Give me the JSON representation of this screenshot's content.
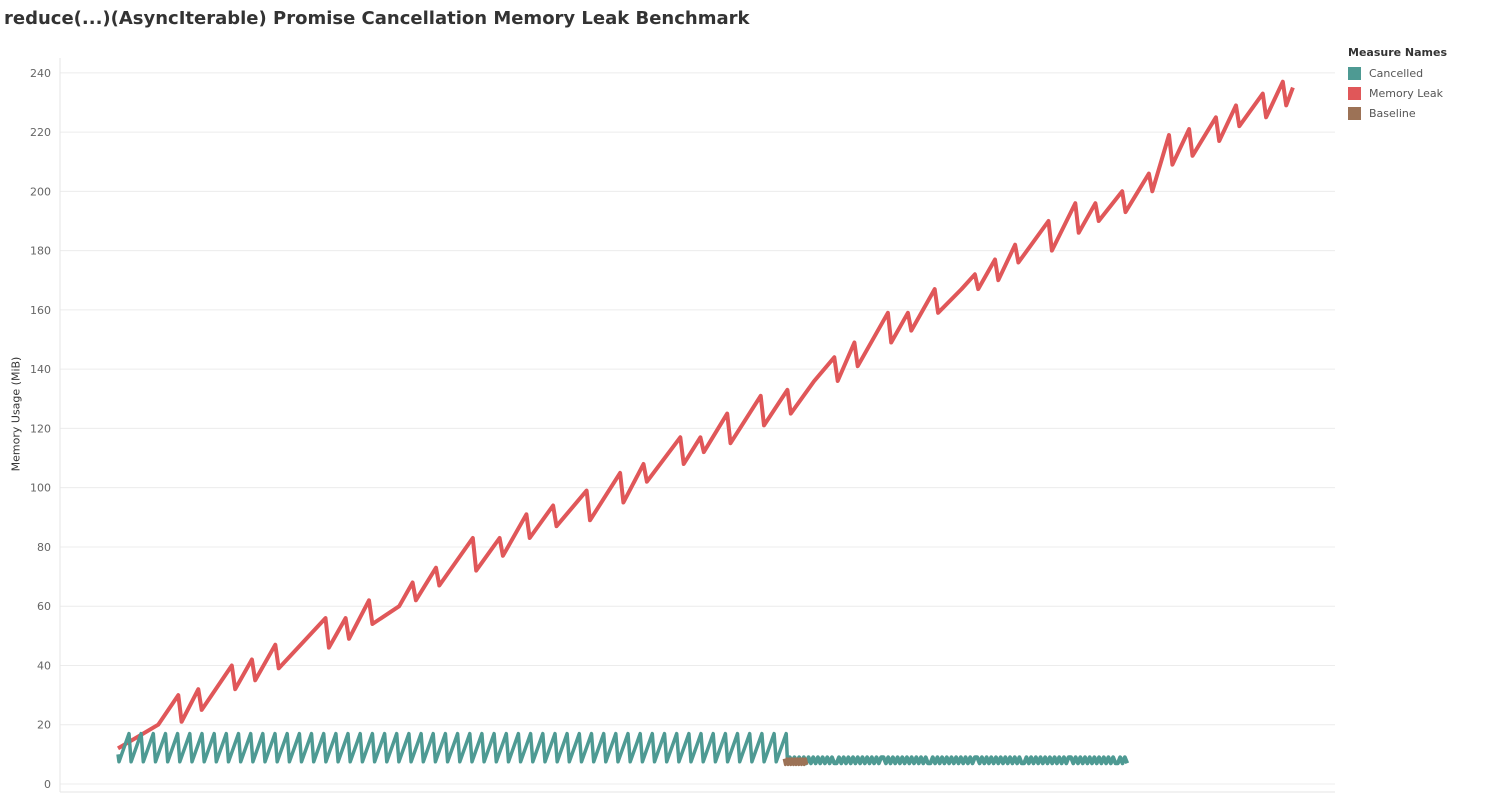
{
  "chart_data": {
    "type": "line",
    "title": "reduce(...)(AsyncIterable) Promise Cancellation Memory Leak Benchmark",
    "xlabel": "",
    "ylabel": "Memory Usage (MiB)",
    "ylim": [
      0,
      245
    ],
    "y_ticks": [
      0,
      20,
      40,
      60,
      80,
      100,
      120,
      140,
      160,
      180,
      200,
      220,
      240
    ],
    "grid": "horizontal",
    "legend_placement": "top-right",
    "legend_title": "Measure Names",
    "series": [
      {
        "name": "Cancelled",
        "color": "#4e9a93",
        "pattern": "sawtooth",
        "x_range": [
          0,
          100
        ],
        "y_low": 7.5,
        "y_high": 17,
        "cycles": 55,
        "flat_after": 100,
        "flat_x_range": [
          100,
          151
        ],
        "flat_y": [
          7.0,
          9.0
        ]
      },
      {
        "name": "Memory Leak",
        "color": "#e05759",
        "pattern": "rising-sawtooth",
        "points": [
          [
            0,
            12
          ],
          [
            3,
            16
          ],
          [
            6,
            20
          ],
          [
            9,
            30
          ],
          [
            9.5,
            21
          ],
          [
            12,
            32
          ],
          [
            12.5,
            25
          ],
          [
            17,
            40
          ],
          [
            17.5,
            32
          ],
          [
            20,
            42
          ],
          [
            20.5,
            35
          ],
          [
            23.5,
            47
          ],
          [
            24,
            39
          ],
          [
            31,
            56
          ],
          [
            31.5,
            46
          ],
          [
            34,
            56
          ],
          [
            34.5,
            49
          ],
          [
            37.5,
            62
          ],
          [
            38,
            54
          ],
          [
            42,
            60
          ],
          [
            44,
            68
          ],
          [
            44.5,
            62
          ],
          [
            47.5,
            73
          ],
          [
            48,
            67
          ],
          [
            53,
            83
          ],
          [
            53.5,
            72
          ],
          [
            57,
            83
          ],
          [
            57.5,
            77
          ],
          [
            61,
            91
          ],
          [
            61.5,
            83
          ],
          [
            65,
            94
          ],
          [
            65.5,
            87
          ],
          [
            70,
            99
          ],
          [
            70.5,
            89
          ],
          [
            75,
            105
          ],
          [
            75.5,
            95
          ],
          [
            78.5,
            108
          ],
          [
            79,
            102
          ],
          [
            84,
            117
          ],
          [
            84.5,
            108
          ],
          [
            87,
            117
          ],
          [
            87.5,
            112
          ],
          [
            91,
            125
          ],
          [
            91.5,
            115
          ],
          [
            96,
            131
          ],
          [
            96.5,
            121
          ],
          [
            100,
            133
          ],
          [
            100.5,
            125
          ],
          [
            104,
            136
          ],
          [
            107,
            144
          ],
          [
            107.5,
            136
          ],
          [
            110,
            149
          ],
          [
            110.5,
            141
          ],
          [
            115,
            159
          ],
          [
            115.5,
            149
          ],
          [
            118,
            159
          ],
          [
            118.5,
            153
          ],
          [
            122,
            167
          ],
          [
            122.5,
            159
          ],
          [
            126,
            167
          ],
          [
            128,
            172
          ],
          [
            128.5,
            167
          ],
          [
            131,
            177
          ],
          [
            131.5,
            170
          ],
          [
            134,
            182
          ],
          [
            134.5,
            176
          ],
          [
            139,
            190
          ],
          [
            139.5,
            180
          ],
          [
            143,
            196
          ],
          [
            143.5,
            186
          ],
          [
            146,
            196
          ],
          [
            146.5,
            190
          ],
          [
            150,
            200
          ],
          [
            150.5,
            193
          ],
          [
            154,
            206
          ],
          [
            154.5,
            200
          ],
          [
            157,
            219
          ],
          [
            157.5,
            209
          ],
          [
            160,
            221
          ],
          [
            160.5,
            212
          ],
          [
            164,
            225
          ],
          [
            164.5,
            217
          ],
          [
            167,
            229
          ],
          [
            167.5,
            222
          ],
          [
            171,
            233
          ],
          [
            171.5,
            225
          ],
          [
            174,
            237
          ],
          [
            174.5,
            229
          ],
          [
            175.5,
            235
          ]
        ]
      },
      {
        "name": "Baseline",
        "color": "#9c7256",
        "pattern": "noise",
        "x_range": [
          99.5,
          103
        ],
        "y_range": [
          6.5,
          8.5
        ]
      }
    ]
  }
}
